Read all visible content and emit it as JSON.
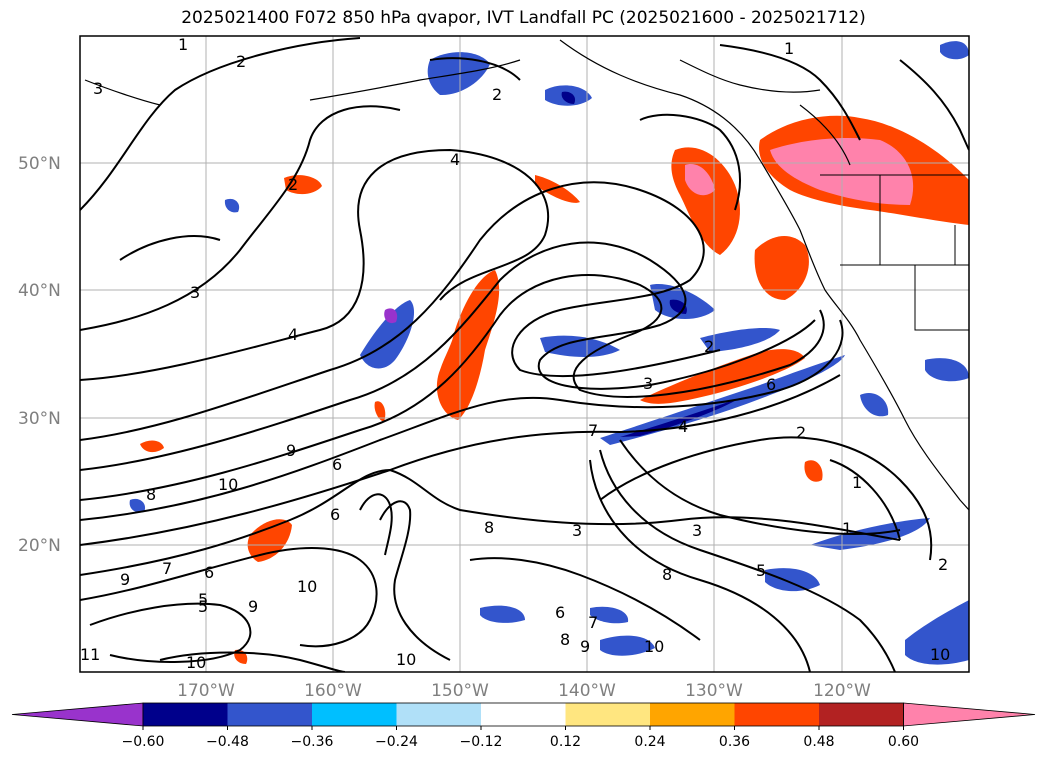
{
  "title": "2025021400 F072 850 hPa qvapor, IVT Landfall PC (2025021600 - 2025021712)",
  "axes": {
    "lon_labels": [
      "170°W",
      "160°W",
      "150°W",
      "140°W",
      "130°W",
      "120°W"
    ],
    "lat_labels": [
      "50°N",
      "40°N",
      "30°N",
      "20°N"
    ]
  },
  "contour_labels": [
    "1",
    "2",
    "3",
    "4",
    "2",
    "3",
    "4",
    "2",
    "2",
    "3",
    "4",
    "7",
    "3",
    "6",
    "2",
    "1",
    "1",
    "2",
    "5",
    "8",
    "3",
    "7",
    "8",
    "9",
    "10",
    "6",
    "8",
    "10",
    "9",
    "6",
    "5",
    "6",
    "7",
    "8",
    "9",
    "10",
    "11",
    "10",
    "10",
    "9",
    "5",
    "6",
    "10",
    "1"
  ],
  "colorbar": {
    "ticks": [
      "−0.60",
      "−0.48",
      "−0.36",
      "−0.24",
      "−0.12",
      "0.12",
      "0.24",
      "0.36",
      "0.48",
      "0.60"
    ],
    "colors": [
      "#9933cc",
      "#00008b",
      "#3355cc",
      "#00bfff",
      "#b0e0f8",
      "#ffffff",
      "#ffe680",
      "#ffa500",
      "#ff4500",
      "#b22222",
      "#ff82ab"
    ]
  }
}
